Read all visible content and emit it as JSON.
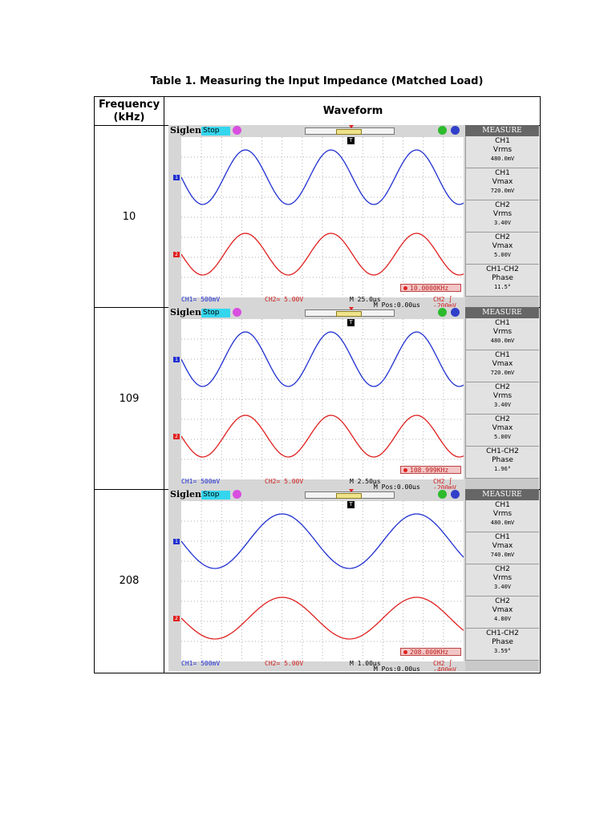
{
  "title": "Table 1.  Measuring the Input Impedance (Matched Load)",
  "headers": {
    "frequency": "Frequency (kHz)",
    "waveform": "Waveform"
  },
  "colors": {
    "ch1": "#2030d0",
    "ch2": "#e02020",
    "stop_badge": "#34d6ee",
    "measure_header": "#666666"
  },
  "rows": [
    {
      "freq": "10",
      "scope": {
        "brand": "Siglent",
        "state": "Stop",
        "measure_title": "MEASURE",
        "measures": [
          {
            "name": "CH1",
            "param": "Vrms",
            "value": "480.0mV"
          },
          {
            "name": "CH1",
            "param": "Vmax",
            "value": "720.0mV"
          },
          {
            "name": "CH2",
            "param": "Vrms",
            "value": "3.40V"
          },
          {
            "name": "CH2",
            "param": "Vmax",
            "value": "5.00V"
          },
          {
            "name": "CH1-CH2",
            "param": "Phase",
            "value": "11.5°"
          }
        ],
        "freq_readout": "10.0000KHz",
        "ch1_scale": "CH1= 500mV",
        "ch2_scale": "CH2= 5.00V",
        "timebase": "M 25.0μs",
        "mpos": "M Pos:0.00μs",
        "trigger": "CH2 ∫ -200mV",
        "ch1_cycles": 3.3,
        "ch2_cycles": 3.3
      }
    },
    {
      "freq": "109",
      "scope": {
        "brand": "Siglent",
        "state": "Stop",
        "measure_title": "MEASURE",
        "measures": [
          {
            "name": "CH1",
            "param": "Vrms",
            "value": "480.0mV"
          },
          {
            "name": "CH1",
            "param": "Vmax",
            "value": "720.0mV"
          },
          {
            "name": "CH2",
            "param": "Vrms",
            "value": "3.40V"
          },
          {
            "name": "CH2",
            "param": "Vmax",
            "value": "5.00V"
          },
          {
            "name": "CH1-CH2",
            "param": "Phase",
            "value": "1.96°"
          }
        ],
        "freq_readout": "108.999KHz",
        "ch1_scale": "CH1= 500mV",
        "ch2_scale": "CH2= 5.00V",
        "timebase": "M 2.50μs",
        "mpos": "M Pos:0.00μs",
        "trigger": "CH2 ∫ -200mV",
        "ch1_cycles": 3.3,
        "ch2_cycles": 3.3
      }
    },
    {
      "freq": "208",
      "scope": {
        "brand": "Siglent",
        "state": "Stop",
        "measure_title": "MEASURE",
        "measures": [
          {
            "name": "CH1",
            "param": "Vrms",
            "value": "480.0mV"
          },
          {
            "name": "CH1",
            "param": "Vmax",
            "value": "740.0mV"
          },
          {
            "name": "CH2",
            "param": "Vrms",
            "value": "3.40V"
          },
          {
            "name": "CH2",
            "param": "Vmax",
            "value": "4.80V"
          },
          {
            "name": "CH1-CH2",
            "param": "Phase",
            "value": "3.59°"
          }
        ],
        "freq_readout": "208.000KHz",
        "ch1_scale": "CH1= 500mV",
        "ch2_scale": "CH2= 5.00V",
        "timebase": "M 1.00μs",
        "mpos": "M Pos:0.00μs",
        "trigger": "CH2 ∫ -400mV",
        "ch1_cycles": 2.1,
        "ch2_cycles": 2.1
      }
    }
  ]
}
